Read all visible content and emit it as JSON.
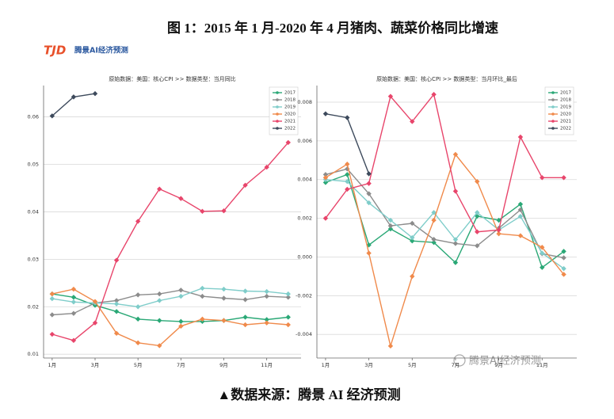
{
  "title": "图 1：2015 年 1 月-2020 年 4 月猪肉、蔬菜价格同比增速",
  "logo": {
    "mark": "TJD",
    "text": "腾景AI经济预测"
  },
  "chart_data": [
    {
      "type": "line",
      "title": "原始数据：美国：核心CPI >> 数据类型：当月同比",
      "categories": [
        "1月",
        null,
        "3月",
        null,
        "5月",
        null,
        "7月",
        null,
        "9月",
        null,
        "11月",
        null
      ],
      "ylim": [
        0.0092,
        0.0666
      ],
      "yticks": [
        0.01,
        0.02,
        0.03,
        0.04,
        0.05,
        0.06
      ],
      "grid": true,
      "legend": "upper right",
      "series": [
        {
          "name": "2017",
          "color": "#2aa876",
          "values": [
            0.0227,
            0.022,
            0.0203,
            0.019,
            0.0174,
            0.0171,
            0.0169,
            0.0169,
            0.0171,
            0.0178,
            0.0173,
            0.0178
          ]
        },
        {
          "name": "2018",
          "color": "#8c8c8c",
          "values": [
            0.0183,
            0.0186,
            0.0208,
            0.0213,
            0.0225,
            0.0227,
            0.0235,
            0.0222,
            0.0218,
            0.0215,
            0.0222,
            0.022
          ]
        },
        {
          "name": "2019",
          "color": "#7fcdca",
          "values": [
            0.0217,
            0.021,
            0.0208,
            0.0206,
            0.02,
            0.0213,
            0.0222,
            0.0239,
            0.0237,
            0.0233,
            0.0232,
            0.0227
          ]
        },
        {
          "name": "2020",
          "color": "#f08a4b",
          "values": [
            0.0227,
            0.0237,
            0.0211,
            0.0144,
            0.0124,
            0.0118,
            0.0159,
            0.0174,
            0.0171,
            0.0162,
            0.0166,
            0.0162
          ]
        },
        {
          "name": "2021",
          "color": "#e8456b",
          "values": [
            0.0142,
            0.0129,
            0.0166,
            0.0298,
            0.038,
            0.0448,
            0.0428,
            0.0401,
            0.0402,
            0.0456,
            0.0494,
            0.0546
          ]
        },
        {
          "name": "2022",
          "color": "#3d4a5c",
          "values": [
            0.0602,
            0.0642,
            0.0649,
            null,
            null,
            null,
            null,
            null,
            null,
            null,
            null,
            null
          ]
        }
      ]
    },
    {
      "type": "line",
      "title": "原始数据：美国：核心CPI >> 数据类型：当月环比_最后",
      "categories": [
        "1月",
        null,
        "3月",
        null,
        "5月",
        null,
        "7月",
        null,
        "9月",
        null,
        "11月",
        null
      ],
      "ylim": [
        -0.00522,
        0.00886
      ],
      "yticks": [
        -0.004,
        -0.002,
        {
          "value": 0,
          "label": "0.000"
        },
        0.002,
        0.004,
        0.006,
        0.008
      ],
      "grid": true,
      "legend": "upper right",
      "series": [
        {
          "name": "2017",
          "color": "#2aa876",
          "values": [
            0.00385,
            0.00426,
            0.00062,
            0.00145,
            0.00083,
            0.00075,
            -0.00029,
            0.00211,
            0.0019,
            0.00273,
            -0.00054,
            0.00029
          ]
        },
        {
          "name": "2018",
          "color": "#8c8c8c",
          "values": [
            0.00426,
            0.00455,
            0.00327,
            0.00161,
            0.00174,
            0.00091,
            0.0007,
            0.00058,
            0.00149,
            0.00244,
            0.00017,
            -4e-05
          ]
        },
        {
          "name": "2019",
          "color": "#7fcdca",
          "values": [
            0.004,
            0.0039,
            0.0028,
            0.0019,
            0.001,
            0.0023,
            0.0009,
            0.0023,
            0.0014,
            0.0021,
            0.0002,
            -0.0006
          ]
        },
        {
          "name": "2020",
          "color": "#f08a4b",
          "values": [
            0.0041,
            0.0048,
            0.0002,
            -0.0046,
            -0.001,
            0.0019,
            0.0053,
            0.0039,
            0.0012,
            0.0011,
            0.0005,
            -0.0009
          ]
        },
        {
          "name": "2021",
          "color": "#e8456b",
          "values": [
            0.002,
            0.0035,
            0.0038,
            0.0083,
            0.007,
            0.0084,
            0.0034,
            0.0013,
            0.0014,
            0.0062,
            0.0041,
            0.0041
          ]
        },
        {
          "name": "2022",
          "color": "#3d4a5c",
          "values": [
            0.0074,
            0.0072,
            0.0043,
            null,
            null,
            null,
            null,
            null,
            null,
            null,
            null,
            null
          ]
        }
      ]
    }
  ],
  "watermark": "腾景AI经济预测",
  "caption": "▲数据来源：腾景 AI 经济预测"
}
